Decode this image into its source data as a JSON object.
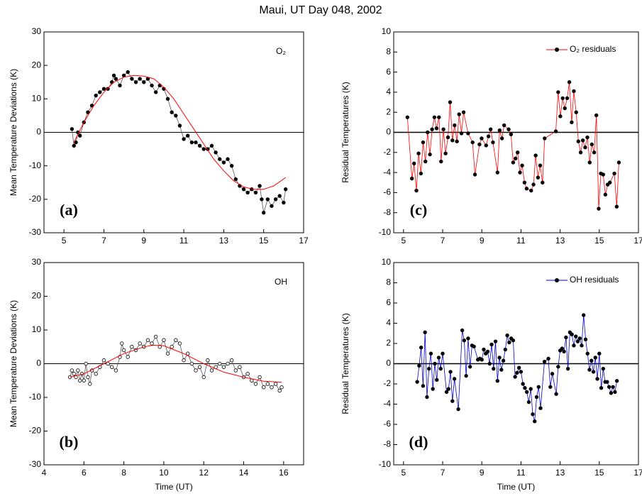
{
  "title": "Maui, UT Day 048, 2002",
  "chart_data": [
    {
      "type": "line",
      "panel_label": "(a)",
      "annotation": "O₂",
      "ylabel": "Mean Temperature Deviations (K)",
      "xlim": [
        4,
        17
      ],
      "ylim": [
        -30,
        30
      ],
      "xticks": [
        5,
        7,
        9,
        11,
        13,
        15,
        17
      ],
      "yticks": [
        -30,
        -20,
        -10,
        0,
        10,
        20,
        30
      ],
      "hline": 0,
      "series": [
        {
          "color": "#555555",
          "marker": "filled",
          "marker_color": "#000000",
          "x": [
            5.4,
            5.5,
            5.6,
            5.7,
            5.8,
            6.0,
            6.2,
            6.4,
            6.6,
            6.8,
            7.0,
            7.2,
            7.4,
            7.5,
            7.6,
            7.8,
            8.0,
            8.2,
            8.4,
            8.6,
            8.8,
            9.0,
            9.2,
            9.4,
            9.6,
            9.8,
            10.0,
            10.2,
            10.4,
            10.6,
            10.8,
            11.0,
            11.2,
            11.4,
            11.6,
            11.8,
            12.0,
            12.2,
            12.4,
            12.6,
            12.8,
            13.0,
            13.2,
            13.4,
            13.6,
            13.8,
            14.0,
            14.2,
            14.4,
            14.6,
            14.8,
            14.9,
            15.0,
            15.2,
            15.4,
            15.6,
            15.8,
            16.0,
            16.1
          ],
          "values": [
            1,
            -4,
            -3,
            0,
            -1,
            3,
            6,
            8,
            11,
            12,
            13,
            13,
            15,
            17,
            16,
            14,
            17,
            18,
            16,
            15,
            16,
            15,
            16,
            14,
            12,
            14,
            13,
            10,
            6,
            5,
            2,
            -2,
            -1,
            -3,
            -3,
            -4,
            -5,
            -5,
            -4,
            -6,
            -8,
            -9,
            -8,
            -10,
            -14,
            -16,
            -17,
            -18,
            -17,
            -18,
            -16,
            -20,
            -24,
            -20,
            -22,
            -20,
            -19,
            -21,
            -17
          ]
        },
        {
          "color": "#ff0000",
          "x": [
            5.5,
            6,
            6.5,
            7,
            7.5,
            8,
            8.5,
            9,
            9.5,
            10,
            10.5,
            11,
            11.5,
            12,
            12.5,
            13,
            13.5,
            14,
            14.5,
            15,
            15.5,
            16.1
          ],
          "values": [
            -3,
            3,
            8,
            12,
            15,
            16.5,
            17,
            16.8,
            16,
            13.5,
            10,
            5.5,
            1,
            -3.5,
            -8,
            -11.5,
            -14.5,
            -16.3,
            -17,
            -17,
            -16,
            -13.5
          ]
        }
      ]
    },
    {
      "type": "line",
      "panel_label": "(b)",
      "annotation": "OH",
      "ylabel": "Mean Temperature Deviations (K)",
      "xlabel": "Time (UT)",
      "xlim": [
        4,
        17
      ],
      "ylim": [
        -30,
        30
      ],
      "xticks": [
        4,
        6,
        8,
        10,
        12,
        14,
        16
      ],
      "yticks": [
        -30,
        -20,
        -10,
        0,
        10,
        20,
        30
      ],
      "hline": 0,
      "series": [
        {
          "color": "#555555",
          "marker": "open",
          "marker_color": "#000000",
          "x": [
            5.3,
            5.4,
            5.5,
            5.6,
            5.7,
            5.8,
            5.9,
            6.0,
            6.1,
            6.2,
            6.3,
            6.4,
            6.6,
            6.8,
            7.0,
            7.2,
            7.4,
            7.6,
            7.8,
            7.9,
            8.0,
            8.2,
            8.4,
            8.6,
            8.8,
            9.0,
            9.2,
            9.4,
            9.6,
            9.8,
            10.0,
            10.2,
            10.4,
            10.6,
            10.8,
            11.0,
            11.2,
            11.4,
            11.6,
            11.8,
            12.0,
            12.2,
            12.4,
            12.6,
            12.8,
            13.0,
            13.2,
            13.4,
            13.6,
            13.8,
            14.0,
            14.2,
            14.4,
            14.6,
            14.8,
            15.0,
            15.2,
            15.4,
            15.6,
            15.8,
            15.9
          ],
          "values": [
            -4,
            -2,
            -3,
            -4,
            -2,
            -5,
            -3,
            -5,
            0,
            -4,
            -6,
            -2,
            -3,
            -1,
            1,
            0,
            -1,
            -2,
            2,
            6,
            4,
            2,
            5,
            4,
            6,
            5,
            7,
            6,
            8,
            5,
            7,
            3,
            5,
            7,
            6,
            1,
            3,
            0,
            -2,
            -1,
            -4,
            1,
            -2,
            -1,
            0,
            -1,
            0,
            1,
            -2,
            -1,
            -4,
            -3,
            -5,
            -6,
            -4,
            -7,
            -6,
            -7,
            -6,
            -8,
            -7
          ]
        },
        {
          "color": "#ff0000",
          "x": [
            5.3,
            6,
            7,
            8,
            9,
            9.5,
            10,
            11,
            12,
            13,
            14,
            15,
            15.9
          ],
          "values": [
            -4,
            -3,
            0,
            3,
            5,
            5.5,
            5.3,
            3,
            0,
            -2.5,
            -4,
            -5.2,
            -5.5
          ]
        }
      ]
    },
    {
      "type": "line",
      "panel_label": "(c)",
      "ylabel": "Residual Temperatures (K)",
      "legend": "upper right",
      "xlim": [
        4.5,
        17
      ],
      "ylim": [
        -10,
        10
      ],
      "xticks": [
        5,
        7,
        9,
        11,
        13,
        15,
        17
      ],
      "yticks": [
        -10,
        -8,
        -6,
        -4,
        -2,
        0,
        2,
        4,
        6,
        8,
        10
      ],
      "hline": 0,
      "series": [
        {
          "name": "O₂ residuals",
          "color": "#ff0000",
          "marker": "filled",
          "marker_color": "#000000",
          "x": [
            5.2,
            5.43,
            5.54,
            5.66,
            5.77,
            5.89,
            6.0,
            6.12,
            6.23,
            6.35,
            6.46,
            6.58,
            6.69,
            6.81,
            6.92,
            7.04,
            7.15,
            7.27,
            7.38,
            7.5,
            7.61,
            7.73,
            7.84,
            7.96,
            8.07,
            8.3,
            8.53,
            8.65,
            8.88,
            8.99,
            9.22,
            9.34,
            9.45,
            9.57,
            9.8,
            9.91,
            10.03,
            10.14,
            10.37,
            10.49,
            10.6,
            10.72,
            10.83,
            10.95,
            11.06,
            11.18,
            11.29,
            11.52,
            11.64,
            11.75,
            11.87,
            11.98,
            12.1,
            12.21,
            12.78,
            12.9,
            13.01,
            13.13,
            13.24,
            13.36,
            13.47,
            13.59,
            13.7,
            13.82,
            13.93,
            14.05,
            14.16,
            14.28,
            14.39,
            14.51,
            14.62,
            14.74,
            14.85,
            14.97,
            15.08,
            15.2,
            15.31,
            15.43,
            15.54,
            15.77,
            15.89,
            16.0
          ],
          "values": [
            1.5,
            -4.6,
            -3.1,
            -5.8,
            -2.1,
            -4.1,
            -1.0,
            -2.9,
            0.0,
            -2.2,
            0.3,
            1.5,
            0.4,
            1.5,
            -2.9,
            0.3,
            -2.1,
            -0.5,
            3.0,
            -0.8,
            0.7,
            -0.9,
            1.8,
            -0.1,
            2.0,
            -0.1,
            -1.0,
            -4.2,
            -1.2,
            -0.6,
            -1.3,
            -0.4,
            0.3,
            -1.0,
            -4.0,
            0.2,
            -0.6,
            0.7,
            0.3,
            -0.2,
            -3.0,
            -2.6,
            -2.0,
            -4.0,
            -3.3,
            -5.0,
            -5.6,
            -5.8,
            -5.2,
            -2.3,
            -4.5,
            -3.3,
            -5.0,
            -0.6,
            0.1,
            4.0,
            1.6,
            3.4,
            2.4,
            3.4,
            5.0,
            1.0,
            4.1,
            2.0,
            -0.9,
            -2.0,
            -0.8,
            -1.5,
            -0.5,
            -3.0,
            -1.2,
            -2.0,
            1.7,
            -7.6,
            -4.1,
            -4.2,
            -6.2,
            -5.2,
            -5.0,
            -4.1,
            -7.4,
            -3.0
          ]
        }
      ]
    },
    {
      "type": "line",
      "panel_label": "(d)",
      "ylabel": "Residual Temperatures (K)",
      "xlabel": "Time (UT)",
      "legend": "upper right",
      "xlim": [
        4.5,
        17
      ],
      "ylim": [
        -10,
        10
      ],
      "xticks": [
        5,
        7,
        9,
        11,
        13,
        15,
        17
      ],
      "yticks": [
        -10,
        -8,
        -6,
        -4,
        -2,
        0,
        2,
        4,
        6,
        8,
        10
      ],
      "hline": 0,
      "series": [
        {
          "name": "OH residuals",
          "color": "#0000cc",
          "marker": "filled",
          "marker_color": "#000000",
          "x": [
            5.7,
            5.8,
            5.9,
            6.0,
            6.1,
            6.2,
            6.3,
            6.4,
            6.5,
            6.6,
            6.7,
            6.8,
            6.9,
            7.0,
            7.2,
            7.3,
            7.4,
            7.5,
            7.6,
            7.8,
            8.0,
            8.1,
            8.2,
            8.3,
            8.4,
            8.5,
            8.6,
            8.8,
            8.9,
            9.0,
            9.1,
            9.2,
            9.3,
            9.4,
            9.5,
            9.6,
            9.7,
            9.8,
            9.9,
            10.0,
            10.1,
            10.2,
            10.3,
            10.4,
            10.5,
            10.6,
            10.7,
            10.8,
            10.9,
            11.0,
            11.1,
            11.2,
            11.3,
            11.4,
            11.5,
            11.6,
            11.7,
            11.8,
            11.9,
            12.0,
            12.2,
            12.4,
            12.5,
            12.6,
            12.8,
            12.9,
            13.0,
            13.1,
            13.2,
            13.3,
            13.4,
            13.5,
            13.6,
            13.7,
            13.8,
            13.9,
            14.0,
            14.1,
            14.2,
            14.3,
            14.4,
            14.5,
            14.6,
            14.7,
            14.8,
            14.9,
            15.0,
            15.1,
            15.2,
            15.3,
            15.4,
            15.5,
            15.6,
            15.7,
            15.8,
            15.9
          ],
          "values": [
            -1.8,
            -0.2,
            1.6,
            -2.2,
            3.1,
            -3.3,
            -0.5,
            1.0,
            -2.5,
            0,
            -1.6,
            0.6,
            -0.5,
            1.0,
            -2.8,
            -2.5,
            -0.8,
            -3.7,
            -1.5,
            -4.5,
            3.3,
            2.3,
            -1.2,
            2.5,
            -0.3,
            1.8,
            1.7,
            0.4,
            0.5,
            0.4,
            1.4,
            1.0,
            1.2,
            0,
            1.9,
            -0.5,
            2.2,
            -1.7,
            0.6,
            -0.6,
            0.3,
            1.4,
            2.8,
            2.1,
            2.5,
            2.3,
            -1.3,
            -0.9,
            -0.4,
            -0.8,
            -2.0,
            -2.4,
            -2.8,
            -3.8,
            -2.5,
            -5.0,
            -5.7,
            -3.3,
            -2.3,
            -4.4,
            0.2,
            0.5,
            -2.3,
            -1.0,
            -3.0,
            -0.3,
            1.3,
            1.5,
            1.2,
            2.6,
            -0.5,
            3.1,
            2.9,
            1.8,
            2.7,
            2.2,
            2.5,
            1.8,
            4.8,
            2.4,
            1.0,
            -0.6,
            0.3,
            -0.8,
            0.6,
            -1.5,
            1.0,
            -2.4,
            -0.5,
            -1.8,
            -1.8,
            -2.3,
            -2.9,
            -2.3,
            -2.8,
            -1.7
          ]
        }
      ]
    }
  ]
}
